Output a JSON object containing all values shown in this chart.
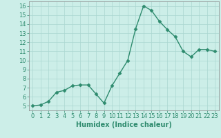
{
  "xlabel": "Humidex (Indice chaleur)",
  "x": [
    0,
    1,
    2,
    3,
    4,
    5,
    6,
    7,
    8,
    9,
    10,
    11,
    12,
    13,
    14,
    15,
    16,
    17,
    18,
    19,
    20,
    21,
    22,
    23
  ],
  "y": [
    5.0,
    5.1,
    5.5,
    6.5,
    6.7,
    7.2,
    7.3,
    7.3,
    6.3,
    5.3,
    7.2,
    8.6,
    10.0,
    13.5,
    16.0,
    15.5,
    14.3,
    13.4,
    12.6,
    11.0,
    10.4,
    11.2,
    11.2,
    11.0
  ],
  "line_color": "#2e8b6e",
  "marker": "D",
  "marker_size": 2.5,
  "background_color": "#cceee8",
  "grid_color": "#aad6d0",
  "ylim_min": 5,
  "ylim_max": 16,
  "xlim_min": 0,
  "xlim_max": 23,
  "yticks": [
    5,
    6,
    7,
    8,
    9,
    10,
    11,
    12,
    13,
    14,
    15,
    16
  ],
  "xticks": [
    0,
    1,
    2,
    3,
    4,
    5,
    6,
    7,
    8,
    9,
    10,
    11,
    12,
    13,
    14,
    15,
    16,
    17,
    18,
    19,
    20,
    21,
    22,
    23
  ],
  "tick_color": "#2e8b6e",
  "tick_fontsize": 6,
  "xlabel_fontsize": 7,
  "xlabel_color": "#2e8b6e",
  "spine_color": "#888888",
  "linewidth": 1.0
}
